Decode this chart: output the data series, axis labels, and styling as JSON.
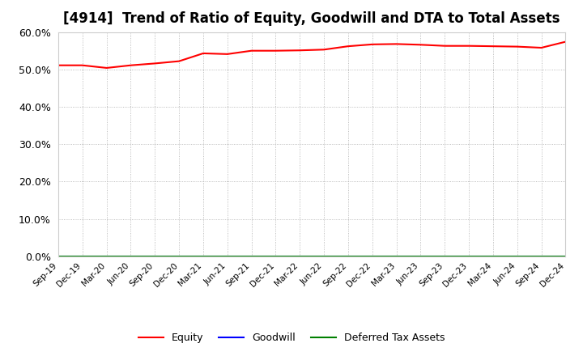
{
  "title": "[4914]  Trend of Ratio of Equity, Goodwill and DTA to Total Assets",
  "x_labels": [
    "Sep-19",
    "Dec-19",
    "Mar-20",
    "Jun-20",
    "Sep-20",
    "Dec-20",
    "Mar-21",
    "Jun-21",
    "Sep-21",
    "Dec-21",
    "Mar-22",
    "Jun-22",
    "Sep-22",
    "Dec-22",
    "Mar-23",
    "Jun-23",
    "Sep-23",
    "Dec-23",
    "Mar-24",
    "Jun-24",
    "Sep-24",
    "Dec-24"
  ],
  "equity": [
    0.511,
    0.511,
    0.504,
    0.511,
    0.516,
    0.522,
    0.543,
    0.541,
    0.55,
    0.55,
    0.551,
    0.553,
    0.562,
    0.567,
    0.568,
    0.566,
    0.563,
    0.563,
    0.562,
    0.561,
    0.558,
    0.574
  ],
  "goodwill": [
    0.0,
    0.0,
    0.0,
    0.0,
    0.0,
    0.0,
    0.0,
    0.0,
    0.0,
    0.0,
    0.0,
    0.0,
    0.0,
    0.0,
    0.0,
    0.0,
    0.0,
    0.0,
    0.0,
    0.0,
    0.0,
    0.0
  ],
  "dta": [
    0.0,
    0.0,
    0.0,
    0.0,
    0.0,
    0.0,
    0.0,
    0.0,
    0.0,
    0.0,
    0.0,
    0.0,
    0.0,
    0.0,
    0.0,
    0.0,
    0.0,
    0.0,
    0.0,
    0.0,
    0.0,
    0.0
  ],
  "equity_color": "#FF0000",
  "goodwill_color": "#0000FF",
  "dta_color": "#008000",
  "ylim": [
    0.0,
    0.6
  ],
  "yticks": [
    0.0,
    0.1,
    0.2,
    0.3,
    0.4,
    0.5,
    0.6
  ],
  "bg_color": "#FFFFFF",
  "plot_bg_color": "#FFFFFF",
  "grid_color": "#AAAAAA",
  "title_fontsize": 12,
  "legend_labels": [
    "Equity",
    "Goodwill",
    "Deferred Tax Assets"
  ]
}
